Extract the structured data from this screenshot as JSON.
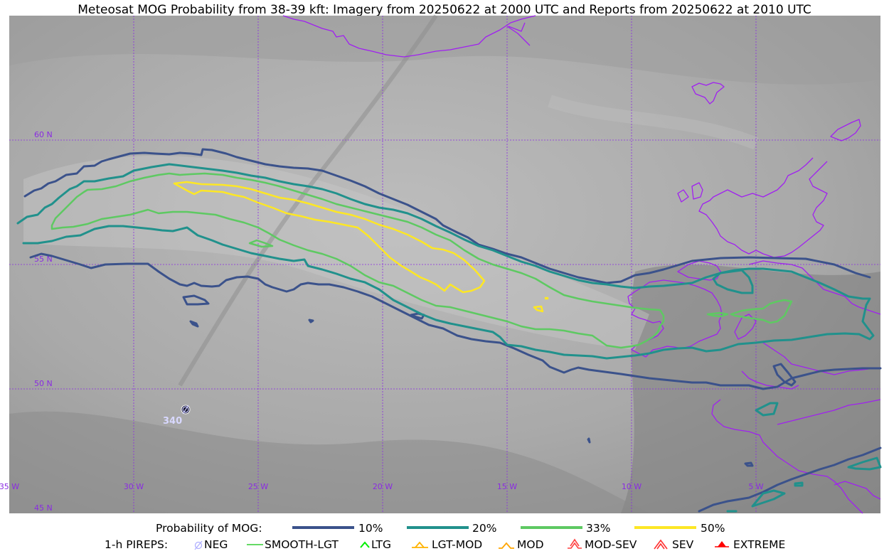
{
  "title": "Meteosat MOG Probability from 38-39 kft: Imagery from 20250622 at 2000 UTC and Reports from 20250622 at 2010 UTC",
  "map": {
    "lat_labels": [
      {
        "value": 60,
        "text": "60 N"
      },
      {
        "value": 55,
        "text": "55 N"
      },
      {
        "value": 50,
        "text": "50 N"
      },
      {
        "value": 45,
        "text": "45 N"
      }
    ],
    "lon_labels": [
      {
        "value": -35,
        "text": "35 W"
      },
      {
        "value": -30,
        "text": "30 W"
      },
      {
        "value": -25,
        "text": "25 W"
      },
      {
        "value": -20,
        "text": "20 W"
      },
      {
        "value": -15,
        "text": "15 W"
      },
      {
        "value": -10,
        "text": "10 W"
      },
      {
        "value": -5,
        "text": "5 W"
      }
    ],
    "pirep_report": {
      "type": "NEG",
      "altitude": "340"
    }
  },
  "colors": {
    "p10": "#3b528b",
    "p20": "#21918c",
    "p33": "#5ec962",
    "p50": "#fde725",
    "coast": "#a020f0",
    "grid": "#8a2be2",
    "neg": "#b0b0ff",
    "smooth": "#32cd32",
    "ltg": "#00ee00",
    "lgtmod": "#ffb300",
    "mod": "#ffa500",
    "modsev": "#ff4040",
    "sev": "#ff3030",
    "extreme": "#ff0000"
  },
  "legend": {
    "prob": {
      "title": "Probability of MOG:",
      "items": [
        {
          "label": "10%",
          "color": "#3b528b"
        },
        {
          "label": "20%",
          "color": "#21918c"
        },
        {
          "label": "33%",
          "color": "#5ec962"
        },
        {
          "label": "50%",
          "color": "#fde725"
        }
      ]
    },
    "pireps": {
      "title": "1-h PIREPS:",
      "items": [
        {
          "label": "NEG",
          "icon": "neg-icon"
        },
        {
          "label": "SMOOTH-LGT",
          "icon": "smooth-lgt-icon"
        },
        {
          "label": "LTG",
          "icon": "ltg-icon"
        },
        {
          "label": "LGT-MOD",
          "icon": "lgt-mod-icon"
        },
        {
          "label": "MOD",
          "icon": "mod-icon"
        },
        {
          "label": "MOD-SEV",
          "icon": "mod-sev-icon"
        },
        {
          "label": "SEV",
          "icon": "sev-icon"
        },
        {
          "label": "EXTREME",
          "icon": "extreme-icon"
        }
      ]
    }
  }
}
